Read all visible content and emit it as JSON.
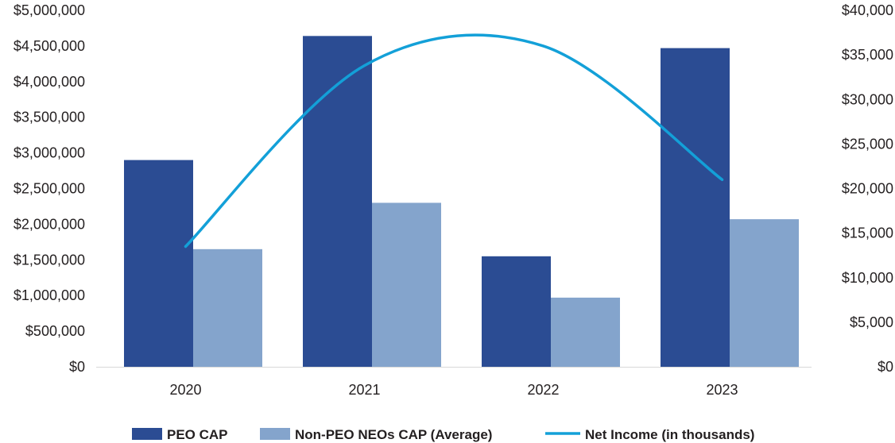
{
  "chart_data": {
    "type": "bar",
    "title": "",
    "categories": [
      "2020",
      "2021",
      "2022",
      "2023"
    ],
    "series": [
      {
        "name": "PEO CAP",
        "axis": "left",
        "kind": "bar",
        "color": "#2b4c93",
        "values": [
          2900000,
          4640000,
          1550000,
          4470000
        ]
      },
      {
        "name": "Non-PEO NEOs CAP (Average)",
        "axis": "left",
        "kind": "bar",
        "color": "#84a4cc",
        "values": [
          1650000,
          2300000,
          970000,
          2070000
        ]
      },
      {
        "name": "Net Income (in thousands)",
        "axis": "right",
        "kind": "line",
        "color": "#13a0d8",
        "values": [
          13500,
          33800,
          36000,
          21000
        ]
      }
    ],
    "left_axis": {
      "min": 0,
      "max": 5000000,
      "step": 500000,
      "tick_labels": [
        "$0",
        "$500,000",
        "$1,000,000",
        "$1,500,000",
        "$2,000,000",
        "$2,500,000",
        "$3,000,000",
        "$3,500,000",
        "$4,000,000",
        "$4,500,000",
        "$5,000,000"
      ]
    },
    "right_axis": {
      "min": 0,
      "max": 40000,
      "step": 5000,
      "tick_labels": [
        "$0",
        "$5,000",
        "$10,000",
        "$15,000",
        "$20,000",
        "$25,000",
        "$30,000",
        "$35,000",
        "$40,000"
      ]
    },
    "grid": false,
    "legend_position": "bottom"
  }
}
